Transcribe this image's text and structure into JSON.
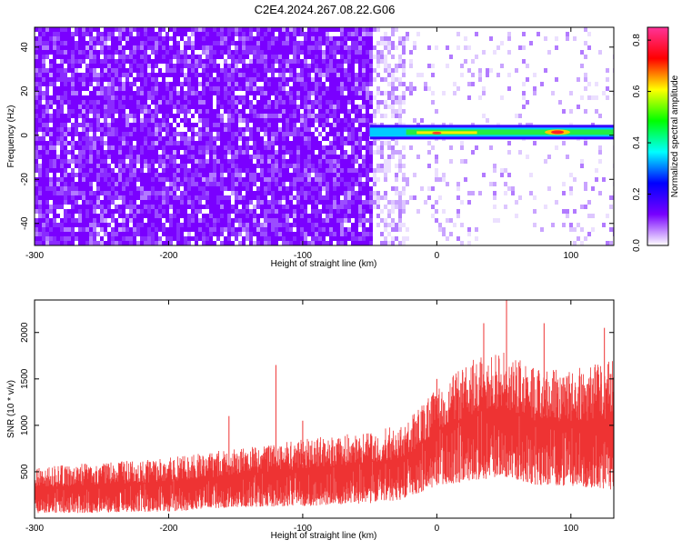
{
  "title": "C2E4.2024.267.08.22.G06",
  "chart_data": [
    {
      "type": "heatmap",
      "xlabel": "Height of straight line (km)",
      "ylabel": "Frequency (Hz)",
      "xlim": [
        -300,
        132
      ],
      "ylim": [
        -50,
        49
      ],
      "xticks": [
        -300,
        -200,
        -100,
        0,
        100
      ],
      "yticks": [
        -40,
        -20,
        0,
        20,
        40
      ],
      "colorbar": {
        "label": "Normalized spectral amplitude",
        "range": [
          0,
          0.85
        ],
        "ticks": [
          0.0,
          0.2,
          0.4,
          0.6,
          0.8
        ],
        "colormap": [
          "#ffffff",
          "#7700ff",
          "#0000ff",
          "#00ffff",
          "#00ff00",
          "#ffff00",
          "#ff0000",
          "#ff3399"
        ]
      },
      "signal_band": {
        "frequency_hz": 1,
        "x_start_km": -50,
        "x_end_km": 132,
        "peak_x_km": 90,
        "peak_amplitude": 0.85
      },
      "noise_drop_x_km": -50
    },
    {
      "type": "line",
      "xlabel": "Height of straight line (km)",
      "ylabel": "SNR (10 * v/v)",
      "xlim": [
        -300,
        132
      ],
      "ylim": [
        0,
        2350
      ],
      "xticks": [
        -300,
        -200,
        -100,
        0,
        100
      ],
      "yticks": [
        500,
        1000,
        1500,
        2000
      ],
      "series": [
        {
          "color": "#ee3333",
          "envelope_x": [
            -300,
            -250,
            -200,
            -150,
            -100,
            -50,
            -25,
            0,
            25,
            50,
            75,
            100,
            132
          ],
          "envelope_low": [
            50,
            60,
            70,
            120,
            130,
            160,
            200,
            350,
            400,
            450,
            350,
            350,
            300
          ],
          "envelope_high": [
            550,
            600,
            650,
            750,
            850,
            950,
            1000,
            1400,
            1700,
            1800,
            1600,
            1600,
            1700
          ],
          "peaks": [
            [
              -120,
              1650
            ],
            [
              -100,
              1050
            ],
            [
              -155,
              1100
            ],
            [
              0,
              1500
            ],
            [
              35,
              2100
            ],
            [
              52,
              2350
            ],
            [
              80,
              2100
            ],
            [
              125,
              2050
            ]
          ]
        }
      ]
    }
  ]
}
